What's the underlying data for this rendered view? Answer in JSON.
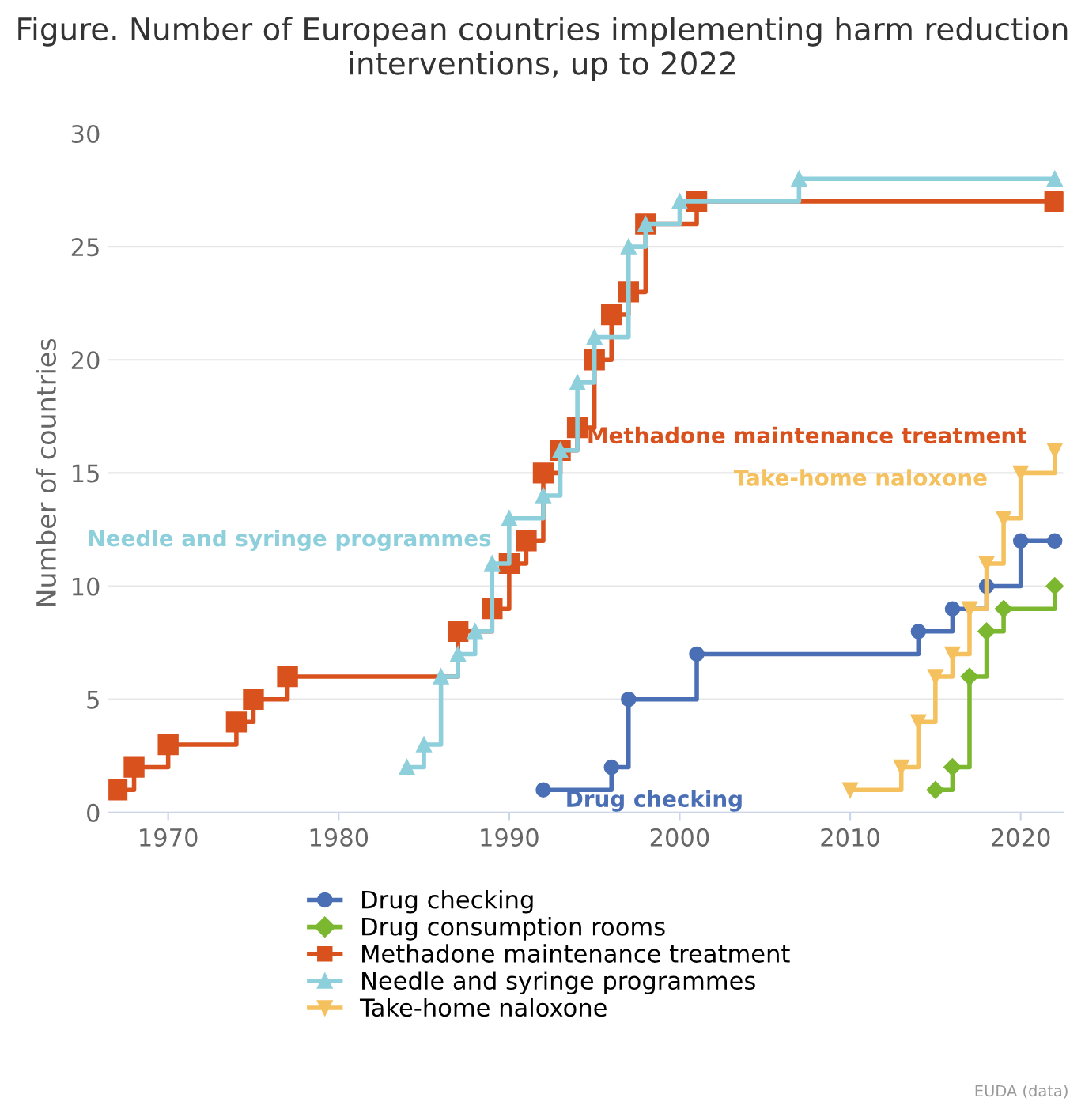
{
  "chart_data": {
    "type": "step",
    "title": "Figure. Number of European countries implementing harm reduction interventions, up to 2022",
    "ylabel": "Number of countries",
    "xlim": [
      1966.5,
      2022.5
    ],
    "xticks": [
      1970,
      1980,
      1990,
      2000,
      2010,
      2020
    ],
    "ylim": [
      0,
      30
    ],
    "yticks": [
      0,
      5,
      10,
      15,
      20,
      25,
      30
    ],
    "grid": "y",
    "legend": "bottom",
    "series": [
      {
        "name": "Drug checking",
        "color": "#4a6fb5",
        "marker": "circle",
        "x": [
          1992,
          1996,
          1997,
          2001,
          2014,
          2016,
          2018,
          2020,
          2022
        ],
        "values": [
          1,
          2,
          5,
          7,
          8,
          9,
          10,
          12,
          12
        ]
      },
      {
        "name": "Drug consumption rooms",
        "color": "#7cb82f",
        "marker": "diamond",
        "x": [
          2015,
          2016,
          2017,
          2018,
          2019,
          2022
        ],
        "values": [
          1,
          2,
          6,
          8,
          9,
          10
        ]
      },
      {
        "name": "Methadone maintenance treatment",
        "color": "#d9521e",
        "marker": "square",
        "x": [
          1967,
          1968,
          1970,
          1974,
          1975,
          1977,
          1987,
          1989,
          1990,
          1991,
          1992,
          1993,
          1994,
          1995,
          1996,
          1997,
          1998,
          2001,
          2022
        ],
        "values": [
          1,
          2,
          3,
          4,
          5,
          6,
          8,
          9,
          11,
          12,
          15,
          16,
          17,
          20,
          22,
          23,
          26,
          27,
          27
        ]
      },
      {
        "name": "Needle and syringe programmes",
        "color": "#8ecfdc",
        "marker": "triangle",
        "x": [
          1984,
          1985,
          1986,
          1987,
          1988,
          1989,
          1990,
          1992,
          1993,
          1994,
          1995,
          1997,
          1998,
          2000,
          2007,
          2022
        ],
        "values": [
          2,
          3,
          6,
          7,
          8,
          11,
          13,
          14,
          16,
          19,
          21,
          25,
          26,
          27,
          28,
          28
        ]
      },
      {
        "name": "Take-home naloxone",
        "color": "#f5c15e",
        "marker": "triangle_down",
        "x": [
          2010,
          2013,
          2014,
          2015,
          2016,
          2017,
          2018,
          2019,
          2020,
          2022
        ],
        "values": [
          1,
          2,
          4,
          6,
          7,
          9,
          11,
          13,
          15,
          16
        ]
      }
    ],
    "annotations": [
      "EUDA (data)"
    ]
  }
}
